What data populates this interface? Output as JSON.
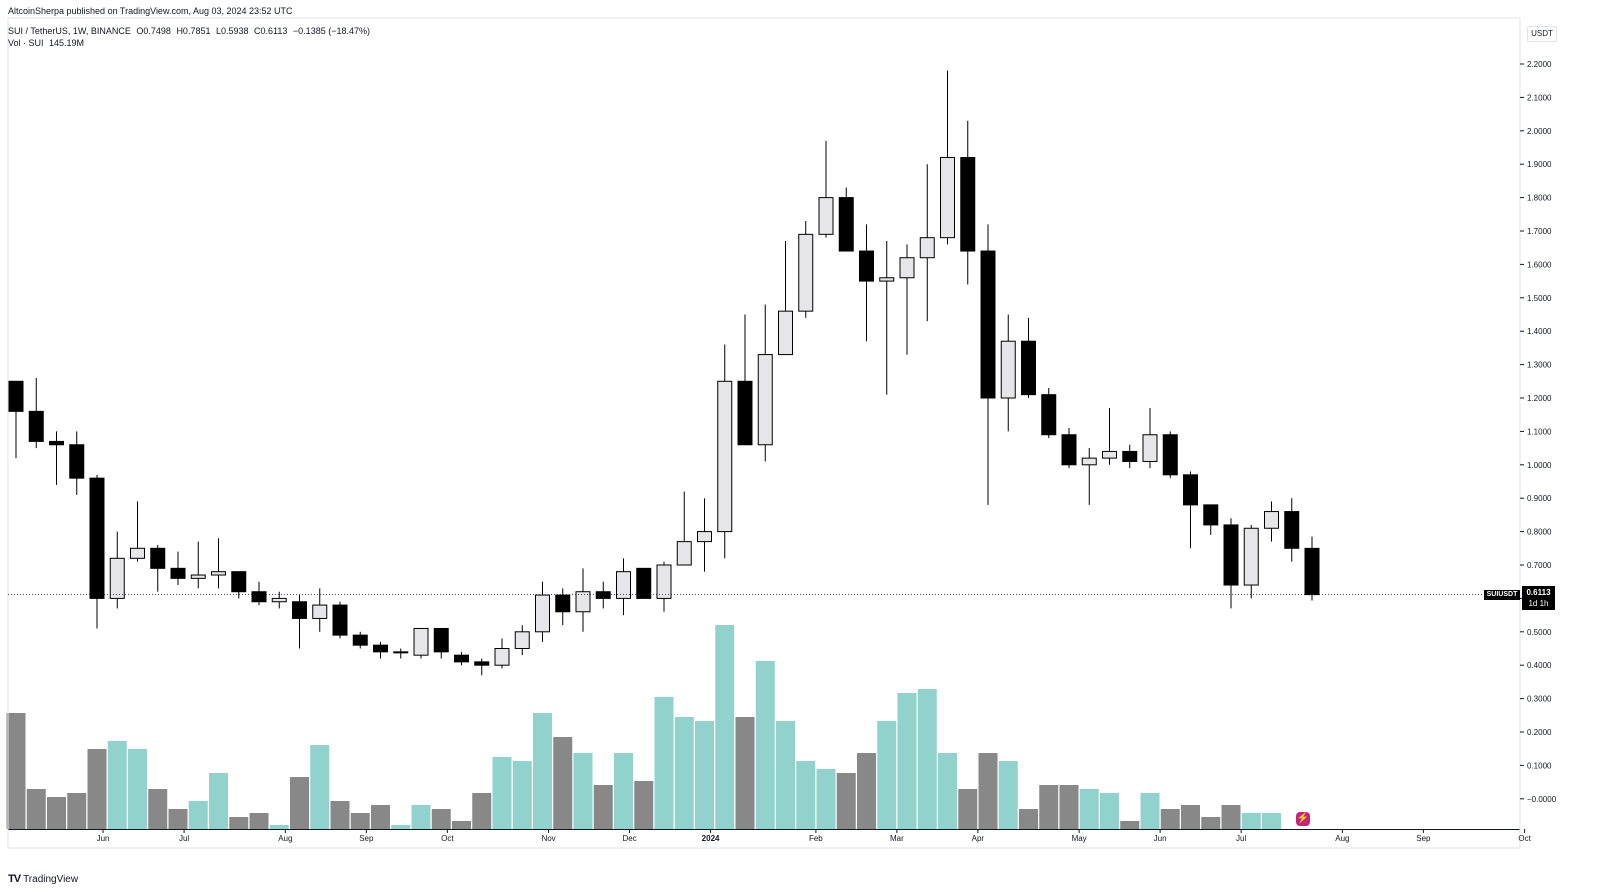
{
  "header": {
    "published": "AltcoinSherpa published on TradingView.com, Aug 03, 2024 23:52 UTC",
    "symbol": "SUI / TetherUS, 1W, BINANCE",
    "ohlc": {
      "open": "O0.7498",
      "high": "H0.7851",
      "low": "L0.5938",
      "close": "C0.6113",
      "change": "−0.1385 (−18.47%)"
    },
    "volume_label": "Vol · SUI",
    "volume_value": "145.19M"
  },
  "axis": {
    "currency": "USDT"
  },
  "last_price": {
    "symbol": "SUIUSDT",
    "price": "0.6113",
    "countdown": "1d 1h"
  },
  "footer": {
    "brand": "TradingView"
  },
  "icons": {
    "brand_logo": "tradingview-logo-icon",
    "bolt": "lightning-bolt-icon"
  },
  "chart_data": {
    "type": "candlestick",
    "up_color": "#e6e6e9",
    "down_color": "#000000",
    "volume_up_color": "#92d2cc",
    "volume_down_color": "#888888",
    "ylim": [
      -0.1,
      2.2
    ],
    "yticks": [
      "2.2000",
      "2.1000",
      "2.0000",
      "1.9000",
      "1.8000",
      "1.7000",
      "1.6000",
      "1.5000",
      "1.4000",
      "1.3000",
      "1.2000",
      "1.1000",
      "1.0000",
      "0.9000",
      "0.8000",
      "0.7000",
      "0.6000",
      "0.5000",
      "0.4000",
      "0.3000",
      "0.2000",
      "0.1000",
      "−0.0000"
    ],
    "ytick_values": [
      2.2,
      2.1,
      2.0,
      1.9,
      1.8,
      1.7,
      1.6,
      1.5,
      1.4,
      1.3,
      1.2,
      1.1,
      1.0,
      0.9,
      0.8,
      0.7,
      0.6,
      0.5,
      0.4,
      0.3,
      0.2,
      0.1,
      0.0
    ],
    "xticks": [
      {
        "label": "Jun",
        "i": 4.3
      },
      {
        "label": "Jul",
        "i": 8.3
      },
      {
        "label": "Aug",
        "i": 13.3
      },
      {
        "label": "Sep",
        "i": 17.3
      },
      {
        "label": "Oct",
        "i": 21.3
      },
      {
        "label": "Nov",
        "i": 26.3
      },
      {
        "label": "Dec",
        "i": 30.3
      },
      {
        "label": "2024",
        "i": 34.3,
        "bold": true
      },
      {
        "label": "Feb",
        "i": 39.5
      },
      {
        "label": "Mar",
        "i": 43.5
      },
      {
        "label": "Apr",
        "i": 47.5
      },
      {
        "label": "May",
        "i": 52.5
      },
      {
        "label": "Jun",
        "i": 56.5
      },
      {
        "label": "Jul",
        "i": 60.5
      },
      {
        "label": "Aug",
        "i": 65.5
      },
      {
        "label": "Sep",
        "i": 69.5
      },
      {
        "label": "Oct",
        "i": 74.5
      }
    ],
    "candles": [
      {
        "o": 1.25,
        "h": 1.25,
        "l": 1.02,
        "c": 1.16,
        "v": 0.29
      },
      {
        "o": 1.16,
        "h": 1.26,
        "l": 1.05,
        "c": 1.07,
        "v": 0.1
      },
      {
        "o": 1.07,
        "h": 1.1,
        "l": 0.94,
        "c": 1.06,
        "v": 0.08
      },
      {
        "o": 1.06,
        "h": 1.1,
        "l": 0.91,
        "c": 0.96,
        "v": 0.09
      },
      {
        "o": 0.96,
        "h": 0.97,
        "l": 0.51,
        "c": 0.6,
        "v": 0.2
      },
      {
        "o": 0.6,
        "h": 0.8,
        "l": 0.57,
        "c": 0.72,
        "v": 0.22
      },
      {
        "o": 0.72,
        "h": 0.89,
        "l": 0.71,
        "c": 0.75,
        "v": 0.2
      },
      {
        "o": 0.75,
        "h": 0.76,
        "l": 0.62,
        "c": 0.69,
        "v": 0.1
      },
      {
        "o": 0.69,
        "h": 0.74,
        "l": 0.64,
        "c": 0.66,
        "v": 0.05
      },
      {
        "o": 0.66,
        "h": 0.77,
        "l": 0.63,
        "c": 0.67,
        "v": 0.07
      },
      {
        "o": 0.67,
        "h": 0.78,
        "l": 0.63,
        "c": 0.68,
        "v": 0.14
      },
      {
        "o": 0.68,
        "h": 0.68,
        "l": 0.6,
        "c": 0.62,
        "v": 0.03
      },
      {
        "o": 0.62,
        "h": 0.65,
        "l": 0.58,
        "c": 0.59,
        "v": 0.04
      },
      {
        "o": 0.59,
        "h": 0.62,
        "l": 0.57,
        "c": 0.6,
        "v": 0.01
      },
      {
        "o": 0.59,
        "h": 0.61,
        "l": 0.45,
        "c": 0.54,
        "v": 0.13
      },
      {
        "o": 0.54,
        "h": 0.63,
        "l": 0.5,
        "c": 0.58,
        "v": 0.21
      },
      {
        "o": 0.58,
        "h": 0.59,
        "l": 0.48,
        "c": 0.49,
        "v": 0.07
      },
      {
        "o": 0.49,
        "h": 0.5,
        "l": 0.45,
        "c": 0.46,
        "v": 0.04
      },
      {
        "o": 0.46,
        "h": 0.47,
        "l": 0.42,
        "c": 0.44,
        "v": 0.06
      },
      {
        "o": 0.44,
        "h": 0.45,
        "l": 0.42,
        "c": 0.44,
        "v": 0.01
      },
      {
        "o": 0.43,
        "h": 0.51,
        "l": 0.42,
        "c": 0.51,
        "v": 0.06
      },
      {
        "o": 0.51,
        "h": 0.51,
        "l": 0.42,
        "c": 0.44,
        "v": 0.05
      },
      {
        "o": 0.43,
        "h": 0.44,
        "l": 0.4,
        "c": 0.41,
        "v": 0.02
      },
      {
        "o": 0.41,
        "h": 0.42,
        "l": 0.37,
        "c": 0.4,
        "v": 0.09
      },
      {
        "o": 0.4,
        "h": 0.48,
        "l": 0.39,
        "c": 0.45,
        "v": 0.18
      },
      {
        "o": 0.45,
        "h": 0.52,
        "l": 0.43,
        "c": 0.5,
        "v": 0.17
      },
      {
        "o": 0.5,
        "h": 0.65,
        "l": 0.47,
        "c": 0.61,
        "v": 0.29
      },
      {
        "o": 0.61,
        "h": 0.63,
        "l": 0.52,
        "c": 0.56,
        "v": 0.23
      },
      {
        "o": 0.56,
        "h": 0.69,
        "l": 0.5,
        "c": 0.62,
        "v": 0.19
      },
      {
        "o": 0.62,
        "h": 0.65,
        "l": 0.57,
        "c": 0.6,
        "v": 0.11
      },
      {
        "o": 0.6,
        "h": 0.72,
        "l": 0.55,
        "c": 0.68,
        "v": 0.19
      },
      {
        "o": 0.69,
        "h": 0.69,
        "l": 0.6,
        "c": 0.6,
        "v": 0.12
      },
      {
        "o": 0.6,
        "h": 0.71,
        "l": 0.56,
        "c": 0.7,
        "v": 0.33
      },
      {
        "o": 0.7,
        "h": 0.92,
        "l": 0.71,
        "c": 0.77,
        "v": 0.28
      },
      {
        "o": 0.77,
        "h": 0.9,
        "l": 0.68,
        "c": 0.8,
        "v": 0.27
      },
      {
        "o": 0.8,
        "h": 1.36,
        "l": 0.72,
        "c": 1.25,
        "v": 0.51
      },
      {
        "o": 1.25,
        "h": 1.45,
        "l": 1.06,
        "c": 1.06,
        "v": 0.28
      },
      {
        "o": 1.06,
        "h": 1.48,
        "l": 1.01,
        "c": 1.33,
        "v": 0.42
      },
      {
        "o": 1.33,
        "h": 1.67,
        "l": 1.33,
        "c": 1.46,
        "v": 0.27
      },
      {
        "o": 1.46,
        "h": 1.73,
        "l": 1.44,
        "c": 1.69,
        "v": 0.17
      },
      {
        "o": 1.69,
        "h": 1.97,
        "l": 1.68,
        "c": 1.8,
        "v": 0.15
      },
      {
        "o": 1.8,
        "h": 1.83,
        "l": 1.64,
        "c": 1.64,
        "v": 0.14
      },
      {
        "o": 1.64,
        "h": 1.72,
        "l": 1.37,
        "c": 1.55,
        "v": 0.19
      },
      {
        "o": 1.55,
        "h": 1.67,
        "l": 1.21,
        "c": 1.56,
        "v": 0.27
      },
      {
        "o": 1.56,
        "h": 1.66,
        "l": 1.33,
        "c": 1.62,
        "v": 0.34
      },
      {
        "o": 1.62,
        "h": 1.9,
        "l": 1.43,
        "c": 1.68,
        "v": 0.35
      },
      {
        "o": 1.68,
        "h": 2.18,
        "l": 1.66,
        "c": 1.92,
        "v": 0.19
      },
      {
        "o": 1.92,
        "h": 2.03,
        "l": 1.54,
        "c": 1.64,
        "v": 0.1
      },
      {
        "o": 1.64,
        "h": 1.72,
        "l": 0.88,
        "c": 1.2,
        "v": 0.19
      },
      {
        "o": 1.2,
        "h": 1.45,
        "l": 1.1,
        "c": 1.37,
        "v": 0.17
      },
      {
        "o": 1.37,
        "h": 1.44,
        "l": 1.2,
        "c": 1.21,
        "v": 0.05
      },
      {
        "o": 1.21,
        "h": 1.23,
        "l": 1.08,
        "c": 1.09,
        "v": 0.11
      },
      {
        "o": 1.09,
        "h": 1.11,
        "l": 0.99,
        "c": 1.0,
        "v": 0.11
      },
      {
        "o": 1.0,
        "h": 1.05,
        "l": 0.88,
        "c": 1.02,
        "v": 0.1
      },
      {
        "o": 1.02,
        "h": 1.17,
        "l": 1.0,
        "c": 1.04,
        "v": 0.09
      },
      {
        "o": 1.04,
        "h": 1.06,
        "l": 0.99,
        "c": 1.01,
        "v": 0.02
      },
      {
        "o": 1.01,
        "h": 1.17,
        "l": 0.99,
        "c": 1.09,
        "v": 0.09
      },
      {
        "o": 1.09,
        "h": 1.1,
        "l": 0.96,
        "c": 0.97,
        "v": 0.05
      },
      {
        "o": 0.97,
        "h": 0.98,
        "l": 0.75,
        "c": 0.88,
        "v": 0.06
      },
      {
        "o": 0.88,
        "h": 0.88,
        "l": 0.79,
        "c": 0.82,
        "v": 0.03
      },
      {
        "o": 0.82,
        "h": 0.84,
        "l": 0.57,
        "c": 0.64,
        "v": 0.06
      },
      {
        "o": 0.64,
        "h": 0.82,
        "l": 0.6,
        "c": 0.81,
        "v": 0.04
      },
      {
        "o": 0.81,
        "h": 0.89,
        "l": 0.77,
        "c": 0.86,
        "v": 0.04
      },
      {
        "o": 0.86,
        "h": 0.9,
        "l": 0.71,
        "c": 0.75,
        "v": 0.0
      },
      {
        "o": 0.7498,
        "h": 0.7851,
        "l": 0.5938,
        "c": 0.6113,
        "v": 0.0
      }
    ]
  }
}
